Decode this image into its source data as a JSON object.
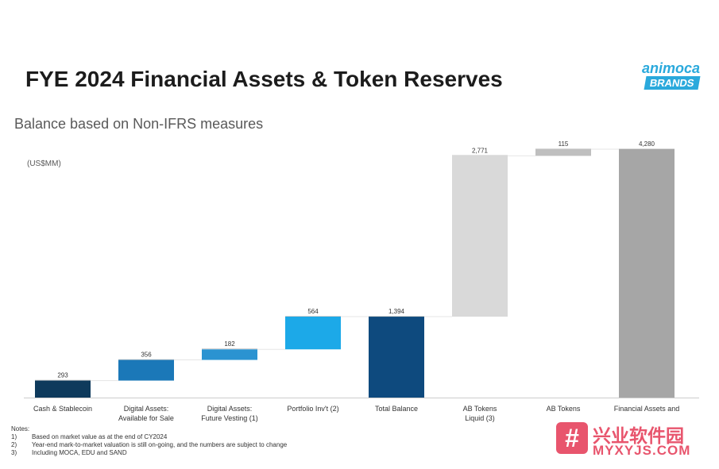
{
  "header": {
    "title": "FYE 2024 Financial Assets & Token Reserves",
    "subtitle": "Balance based on Non-IFRS measures",
    "unit": "(US$MM)"
  },
  "logo": {
    "line1": "animoca",
    "line2": "BRANDS"
  },
  "chart_data": {
    "type": "bar",
    "subtype": "waterfall",
    "categories": [
      [
        "Cash & Stablecoin"
      ],
      [
        "Digital Assets:",
        "Available for Sale"
      ],
      [
        "Digital Assets:",
        "Future Vesting (1)"
      ],
      [
        "Portfolio Inv't (2)"
      ],
      [
        "Total Balance"
      ],
      [
        "AB Tokens",
        "Liquid (3)"
      ],
      [
        "AB Tokens"
      ],
      [
        "Financial Assets and"
      ]
    ],
    "values": [
      293,
      356,
      182,
      564,
      1394,
      2771,
      115,
      4280
    ],
    "value_labels": [
      "293",
      "356",
      "182",
      "564",
      "1,394",
      "2,771",
      "115",
      "4,280"
    ],
    "bar_kind": [
      "increment",
      "increment",
      "increment",
      "increment",
      "total",
      "increment",
      "increment",
      "total"
    ],
    "colors": [
      "#0e3a5c",
      "#1b78b8",
      "#2b93d1",
      "#1ca9e8",
      "#0e4a7e",
      "#d9d9d9",
      "#bfbfbf",
      "#a6a6a6"
    ],
    "ylim": [
      0,
      4280
    ],
    "grid": false,
    "legend": "none"
  },
  "notes": {
    "heading": "Notes:",
    "items": [
      {
        "num": "1)",
        "text": "Based on market value as at the end of CY2024"
      },
      {
        "num": "2)",
        "text": "Year-end mark-to-market valuation is still on-going, and the numbers are subject to change"
      },
      {
        "num": "3)",
        "text": "Including MOCA, EDU and SAND"
      }
    ]
  },
  "watermark": {
    "cn": "兴业软件园",
    "en": "MYXYJS.COM"
  }
}
